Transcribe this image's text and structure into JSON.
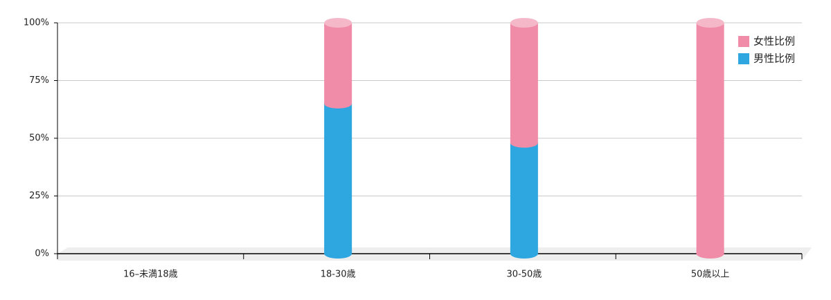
{
  "chart_data": {
    "type": "stacked-cylinder",
    "categories": [
      "16–未満18歳",
      "18-30歳",
      "30-50歳",
      "50歳以上"
    ],
    "series": [
      {
        "name": "男性比例",
        "color": "#2ea6e0",
        "values": [
          0,
          65,
          48,
          0
        ]
      },
      {
        "name": "女性比例",
        "color": "#f08ca8",
        "values": [
          0,
          35,
          52,
          100
        ]
      }
    ],
    "ylim": [
      0,
      100
    ],
    "yticks": [
      {
        "value": 0,
        "label": "0%"
      },
      {
        "value": 25,
        "label": "25%"
      },
      {
        "value": 50,
        "label": "50%"
      },
      {
        "value": 75,
        "label": "75%"
      },
      {
        "value": 100,
        "label": "100%"
      }
    ],
    "grid": true,
    "legend": "top-right"
  }
}
